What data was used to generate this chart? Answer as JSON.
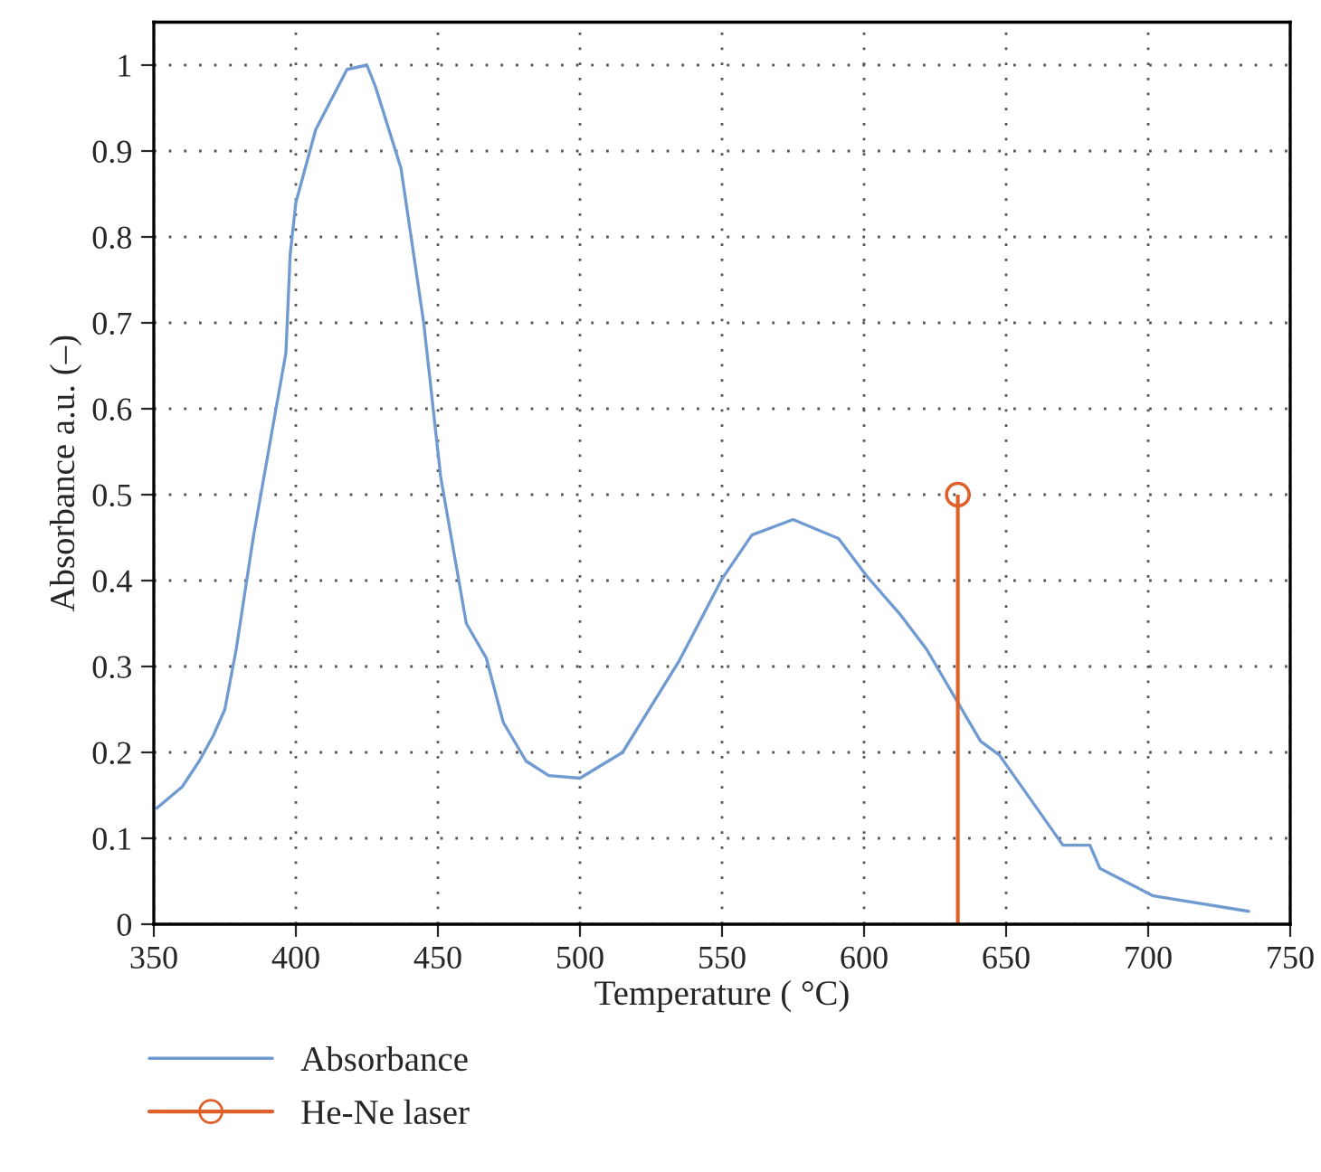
{
  "chart_data": {
    "type": "line",
    "xlabel": "Temperature ( °C)",
    "ylabel": "Absorbance a.u. (–)",
    "xlim": [
      350,
      750
    ],
    "xticks": [
      350,
      400,
      450,
      500,
      550,
      600,
      650,
      700,
      750
    ],
    "ylim": [
      0,
      1.05
    ],
    "yticks": [
      0,
      0.1,
      0.2,
      0.3,
      0.4,
      0.5,
      0.6,
      0.7,
      0.8,
      0.9,
      1
    ],
    "grid": true,
    "legend": "bottom left",
    "series": [
      {
        "name": "Absorbance",
        "color": "#6f9bd1",
        "marker": "none",
        "x": [
          351,
          360,
          366,
          371,
          375,
          379,
          385,
          393,
          396.5,
          398,
          400,
          407,
          418,
          425,
          428,
          437,
          445,
          451,
          460,
          467,
          473,
          481,
          489,
          500,
          515,
          535,
          550,
          560.5,
          575,
          591,
          601,
          612.6,
          622,
          641,
          647.6,
          670,
          679.5,
          683,
          701.8,
          735.4
        ],
        "values": [
          0.135,
          0.16,
          0.19,
          0.22,
          0.25,
          0.32,
          0.45,
          0.6,
          0.665,
          0.78,
          0.84,
          0.925,
          0.995,
          1.0,
          0.975,
          0.88,
          0.7,
          0.52,
          0.35,
          0.31,
          0.235,
          0.19,
          0.173,
          0.17,
          0.2,
          0.307,
          0.402,
          0.453,
          0.471,
          0.449,
          0.405,
          0.361,
          0.32,
          0.213,
          0.197,
          0.092,
          0.092,
          0.065,
          0.033,
          0.015
        ]
      },
      {
        "name": "He-Ne laser",
        "color": "#e0602a",
        "type": "lollipop",
        "marker": "circle",
        "x": [
          633
        ],
        "values": [
          0.5
        ]
      }
    ]
  }
}
